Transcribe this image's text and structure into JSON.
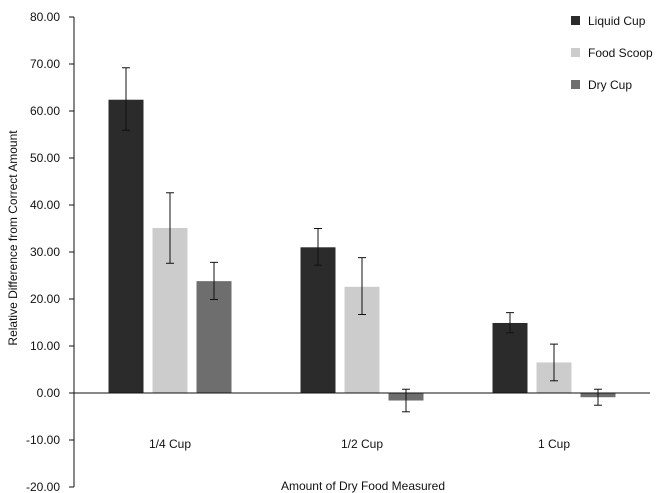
{
  "chart_data": {
    "type": "bar",
    "title": "",
    "xlabel": "Amount of Dry Food Measured",
    "ylabel": "Relative Difference from Correct Amount",
    "categories": [
      "1/4 Cup",
      "1/2 Cup",
      "1 Cup"
    ],
    "ylim": [
      -20,
      80
    ],
    "yticks": [
      "-20.00",
      "-10.00",
      "0.00",
      "10.00",
      "20.00",
      "30.00",
      "40.00",
      "50.00",
      "60.00",
      "70.00",
      "80.00"
    ],
    "grid": false,
    "legend_position": "top-right",
    "series": [
      {
        "name": "Liquid Cup",
        "color": "#2b2b2b",
        "values": [
          62.4,
          31.0,
          14.9
        ],
        "error_low": [
          55.9,
          27.2,
          12.8
        ],
        "error_high": [
          69.2,
          35.0,
          17.1
        ]
      },
      {
        "name": "Food Scoop",
        "color": "#cccccc",
        "values": [
          35.1,
          22.6,
          6.5
        ],
        "error_low": [
          27.6,
          16.7,
          2.6
        ],
        "error_high": [
          42.6,
          28.8,
          10.4
        ]
      },
      {
        "name": "Dry Cup",
        "color": "#6e6e6e",
        "values": [
          23.8,
          -1.6,
          -0.9
        ],
        "error_low": [
          19.9,
          -4.0,
          -2.6
        ],
        "error_high": [
          27.8,
          0.8,
          0.8
        ]
      }
    ]
  }
}
